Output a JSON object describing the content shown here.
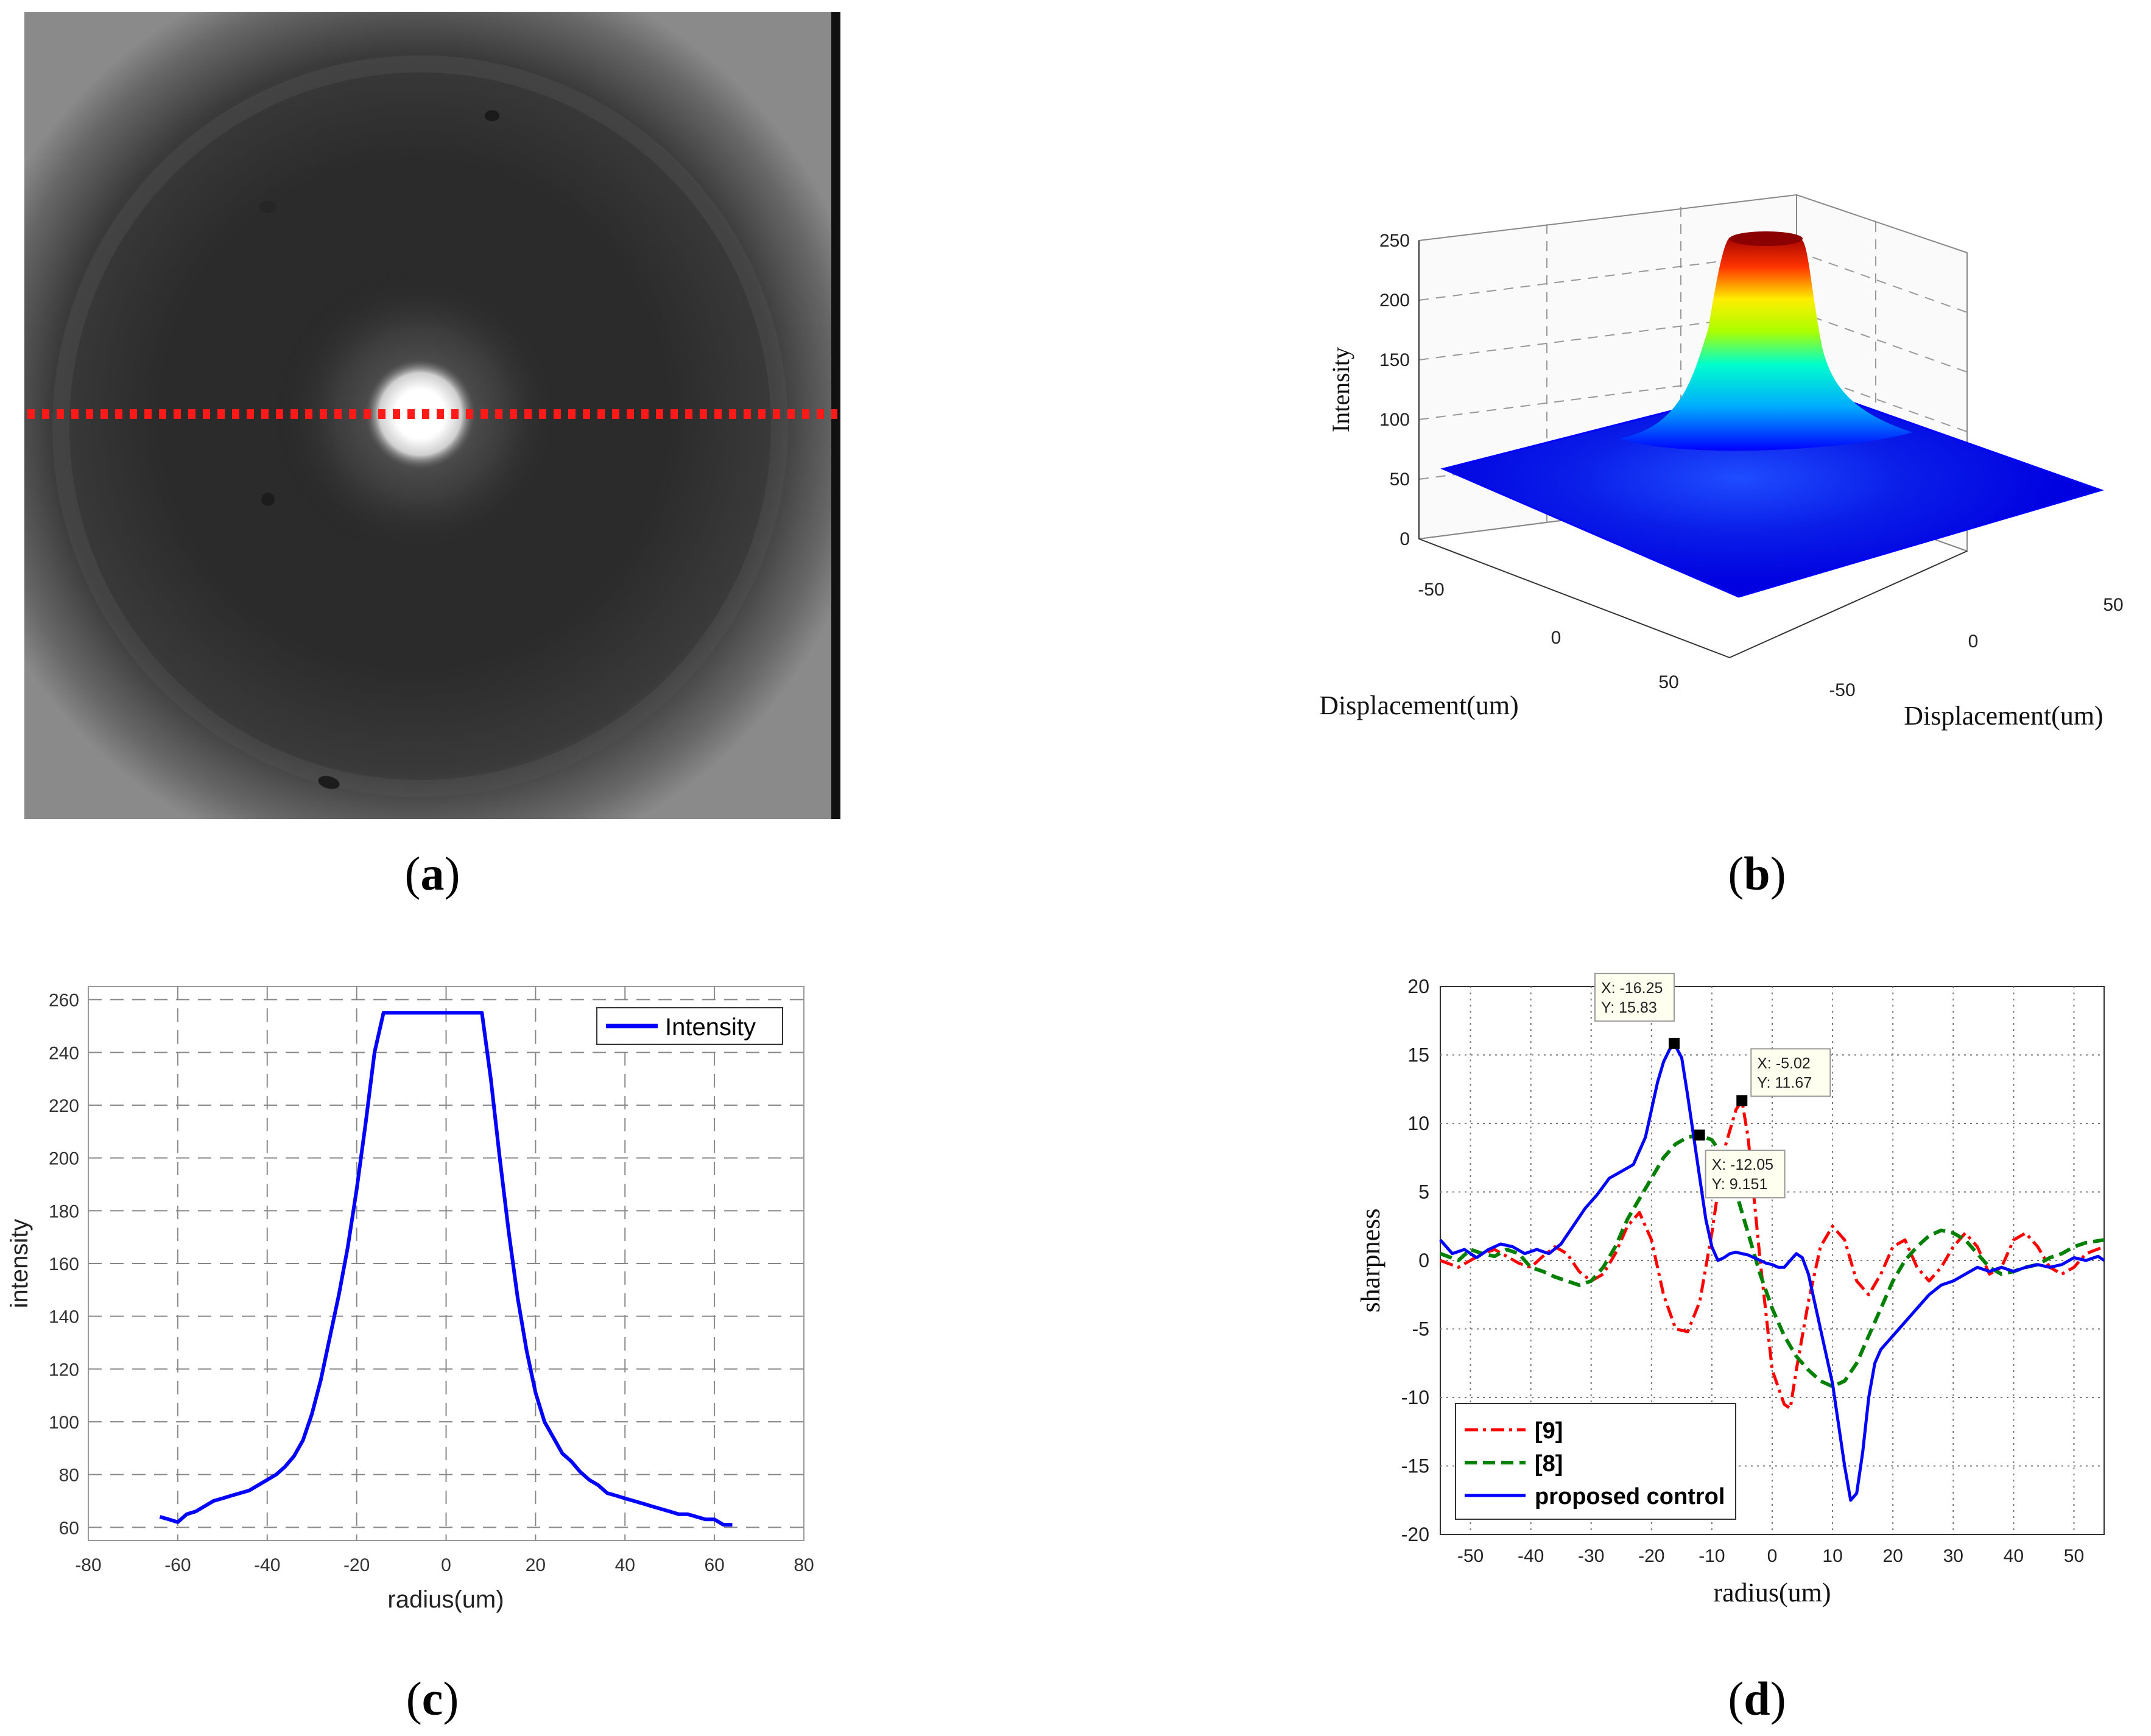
{
  "captions": {
    "a_open": "(",
    "a_letter": "a",
    "a_close": ")",
    "b_open": "(",
    "b_letter": "b",
    "b_close": ")",
    "c_open": "(",
    "c_letter": "c",
    "c_close": ")",
    "d_open": "(",
    "d_letter": "d",
    "d_close": ")"
  },
  "colors": {
    "red_dots": "#ff1a1a",
    "blue": "#0000ff",
    "green": "#008000",
    "red": "#ff0000"
  },
  "chart_data": [
    {
      "id": "b",
      "type": "surface3d",
      "zlabel": "Intensity",
      "xlabel": "Displacement(um)",
      "ylabel": "Displacement(um)",
      "zticks": [
        "0",
        "50",
        "100",
        "150",
        "200",
        "250"
      ],
      "xticks": [
        "-50",
        "0",
        "50"
      ],
      "yticks": [
        "-50",
        "0",
        "50"
      ],
      "zlim": [
        0,
        250
      ],
      "base_level": 55,
      "peak_level": 255
    },
    {
      "id": "c",
      "type": "line",
      "xlabel": "radius(um)",
      "ylabel": "intensity",
      "xlim": [
        -80,
        80
      ],
      "ylim": [
        55,
        265
      ],
      "xticks": [
        -80,
        -60,
        -40,
        -20,
        0,
        20,
        40,
        60,
        80
      ],
      "yticks": [
        60,
        80,
        100,
        120,
        140,
        160,
        180,
        200,
        220,
        240,
        260
      ],
      "legend": [
        "Intensity"
      ],
      "series": [
        {
          "name": "Intensity",
          "x": [
            -64,
            -62,
            -60,
            -58,
            -56,
            -54,
            -52,
            -50,
            -48,
            -46,
            -44,
            -42,
            -40,
            -38,
            -36,
            -34,
            -32,
            -30,
            -28,
            -26,
            -24,
            -22,
            -20,
            -18,
            -16,
            -14,
            -12,
            -10,
            -8,
            -6,
            -4,
            -2,
            0,
            2,
            4,
            6,
            8,
            10,
            12,
            14,
            16,
            18,
            20,
            22,
            24,
            26,
            28,
            30,
            32,
            34,
            36,
            38,
            40,
            42,
            44,
            46,
            48,
            50,
            52,
            54,
            56,
            58,
            60,
            62,
            64
          ],
          "y": [
            64,
            63,
            62,
            65,
            66,
            68,
            70,
            71,
            72,
            73,
            74,
            76,
            78,
            80,
            83,
            87,
            93,
            103,
            116,
            132,
            148,
            166,
            188,
            213,
            240,
            255,
            255,
            255,
            255,
            255,
            255,
            255,
            255,
            255,
            255,
            255,
            255,
            230,
            200,
            172,
            147,
            127,
            111,
            100,
            94,
            88,
            85,
            81,
            78,
            76,
            73,
            72,
            71,
            70,
            69,
            68,
            67,
            66,
            65,
            65,
            64,
            63,
            63,
            61,
            61
          ]
        }
      ]
    },
    {
      "id": "d",
      "type": "line",
      "xlabel": "radius(um)",
      "ylabel": "sharpness",
      "xlim": [
        -55,
        55
      ],
      "ylim": [
        -20,
        20
      ],
      "xticks": [
        -50,
        -40,
        -30,
        -20,
        -10,
        0,
        10,
        20,
        30,
        40,
        50
      ],
      "yticks": [
        -20,
        -15,
        -10,
        -5,
        0,
        5,
        10,
        15,
        20
      ],
      "legend": [
        "[9]",
        "[8]",
        "proposed control"
      ],
      "annotations": [
        {
          "x": -16.25,
          "y": 15.83,
          "line1": "X: -16.25",
          "line2": "Y: 15.83"
        },
        {
          "x": -5.02,
          "y": 11.67,
          "line1": "X: -5.02",
          "line2": "Y: 11.67"
        },
        {
          "x": -12.05,
          "y": 9.151,
          "line1": "X: -12.05",
          "line2": "Y: 9.151"
        }
      ],
      "series": [
        {
          "name": "[9]",
          "style": "dashdot",
          "color": "#ff0000",
          "x": [
            -55,
            -52,
            -50,
            -48,
            -46,
            -44,
            -42,
            -40,
            -38,
            -36,
            -34,
            -32,
            -30,
            -28,
            -26,
            -24,
            -22,
            -20,
            -18,
            -16,
            -14,
            -12,
            -10,
            -8,
            -6,
            -5.02,
            -4,
            -2,
            0,
            2,
            3,
            4,
            6,
            8,
            10,
            12,
            14,
            16,
            18,
            20,
            22,
            24,
            26,
            28,
            30,
            32,
            34,
            36,
            38,
            40,
            42,
            44,
            46,
            48,
            50,
            52,
            55
          ],
          "y": [
            0,
            -0.5,
            0,
            0.5,
            0.8,
            0.3,
            -0.2,
            -0.5,
            0.3,
            1.0,
            0.5,
            -0.8,
            -1.5,
            -1.0,
            0.5,
            2.5,
            3.5,
            1.5,
            -2.5,
            -5,
            -5.2,
            -3,
            2,
            8,
            11,
            11.67,
            9,
            0,
            -8,
            -10.5,
            -10.8,
            -8,
            -3,
            1,
            2.5,
            1.5,
            -1.5,
            -2.5,
            -1,
            1,
            1.5,
            -0.5,
            -1.5,
            -0.5,
            1,
            2,
            1,
            -1,
            -0.5,
            1.5,
            2,
            1,
            -0.5,
            -1,
            -0.5,
            0.5,
            1
          ]
        },
        {
          "name": "[8]",
          "style": "dashed",
          "color": "#008000",
          "x": [
            -55,
            -52,
            -50,
            -48,
            -46,
            -44,
            -42,
            -40,
            -38,
            -36,
            -34,
            -32,
            -30,
            -28,
            -26,
            -24,
            -22,
            -20,
            -18,
            -16,
            -14,
            -12.05,
            -10,
            -8,
            -6,
            -4,
            -2,
            0,
            2,
            4,
            6,
            8,
            10,
            12,
            14,
            16,
            18,
            20,
            22,
            24,
            26,
            28,
            30,
            32,
            34,
            36,
            38,
            40,
            42,
            44,
            46,
            48,
            50,
            52,
            55
          ],
          "y": [
            0.5,
            0,
            0.8,
            0.5,
            0.3,
            0.8,
            0.5,
            -0.5,
            -0.8,
            -1.2,
            -1.5,
            -1.8,
            -1.5,
            -0.5,
            1,
            3,
            4.5,
            6,
            7.5,
            8.5,
            9,
            9.151,
            8.8,
            7.5,
            5,
            2,
            -1,
            -3.5,
            -5.5,
            -7,
            -8,
            -8.8,
            -9.2,
            -8.8,
            -7.5,
            -5.5,
            -3.5,
            -1.5,
            0,
            1,
            1.8,
            2.2,
            2,
            1.5,
            0.5,
            -0.5,
            -1,
            -0.8,
            -0.5,
            -0.3,
            0.2,
            0.5,
            1,
            1.3,
            1.5
          ]
        },
        {
          "name": "proposed control",
          "style": "solid",
          "color": "#0000ff",
          "x": [
            -55,
            -53,
            -51,
            -49,
            -47,
            -45,
            -43,
            -41,
            -39,
            -37,
            -35,
            -33,
            -31,
            -29,
            -27,
            -25,
            -23,
            -21,
            -20,
            -19,
            -18,
            -17,
            -16.25,
            -15,
            -14,
            -13,
            -12,
            -11,
            -10,
            -9,
            -8,
            -7,
            -6,
            -5,
            -4,
            -3,
            -2,
            -1,
            0,
            1,
            2,
            3,
            4,
            5,
            6,
            7,
            8,
            9,
            10,
            11,
            12,
            13,
            14,
            15,
            16,
            17,
            18,
            19,
            20,
            22,
            24,
            26,
            28,
            30,
            32,
            34,
            36,
            38,
            40,
            42,
            44,
            46,
            48,
            50,
            52,
            54,
            55
          ],
          "y": [
            1.5,
            0.5,
            0.8,
            0.2,
            0.8,
            1.2,
            1,
            0.5,
            0.8,
            0.5,
            1.2,
            2.5,
            3.8,
            4.8,
            6,
            6.5,
            7,
            9,
            11,
            13,
            14.5,
            15.4,
            15.83,
            14.8,
            12,
            9,
            6,
            3,
            1,
            0,
            0.2,
            0.5,
            0.6,
            0.5,
            0.4,
            0.2,
            0,
            -0.2,
            -0.3,
            -0.5,
            -0.5,
            0,
            0.5,
            0.2,
            -1,
            -3,
            -5,
            -7,
            -9,
            -12,
            -15,
            -17.5,
            -17,
            -14,
            -10,
            -7.5,
            -6.5,
            -6,
            -5.5,
            -4.5,
            -3.5,
            -2.5,
            -1.8,
            -1.5,
            -1,
            -0.5,
            -0.8,
            -0.5,
            -0.8,
            -0.5,
            -0.3,
            -0.5,
            -0.3,
            0.2,
            0,
            0.3,
            0
          ]
        }
      ]
    }
  ]
}
